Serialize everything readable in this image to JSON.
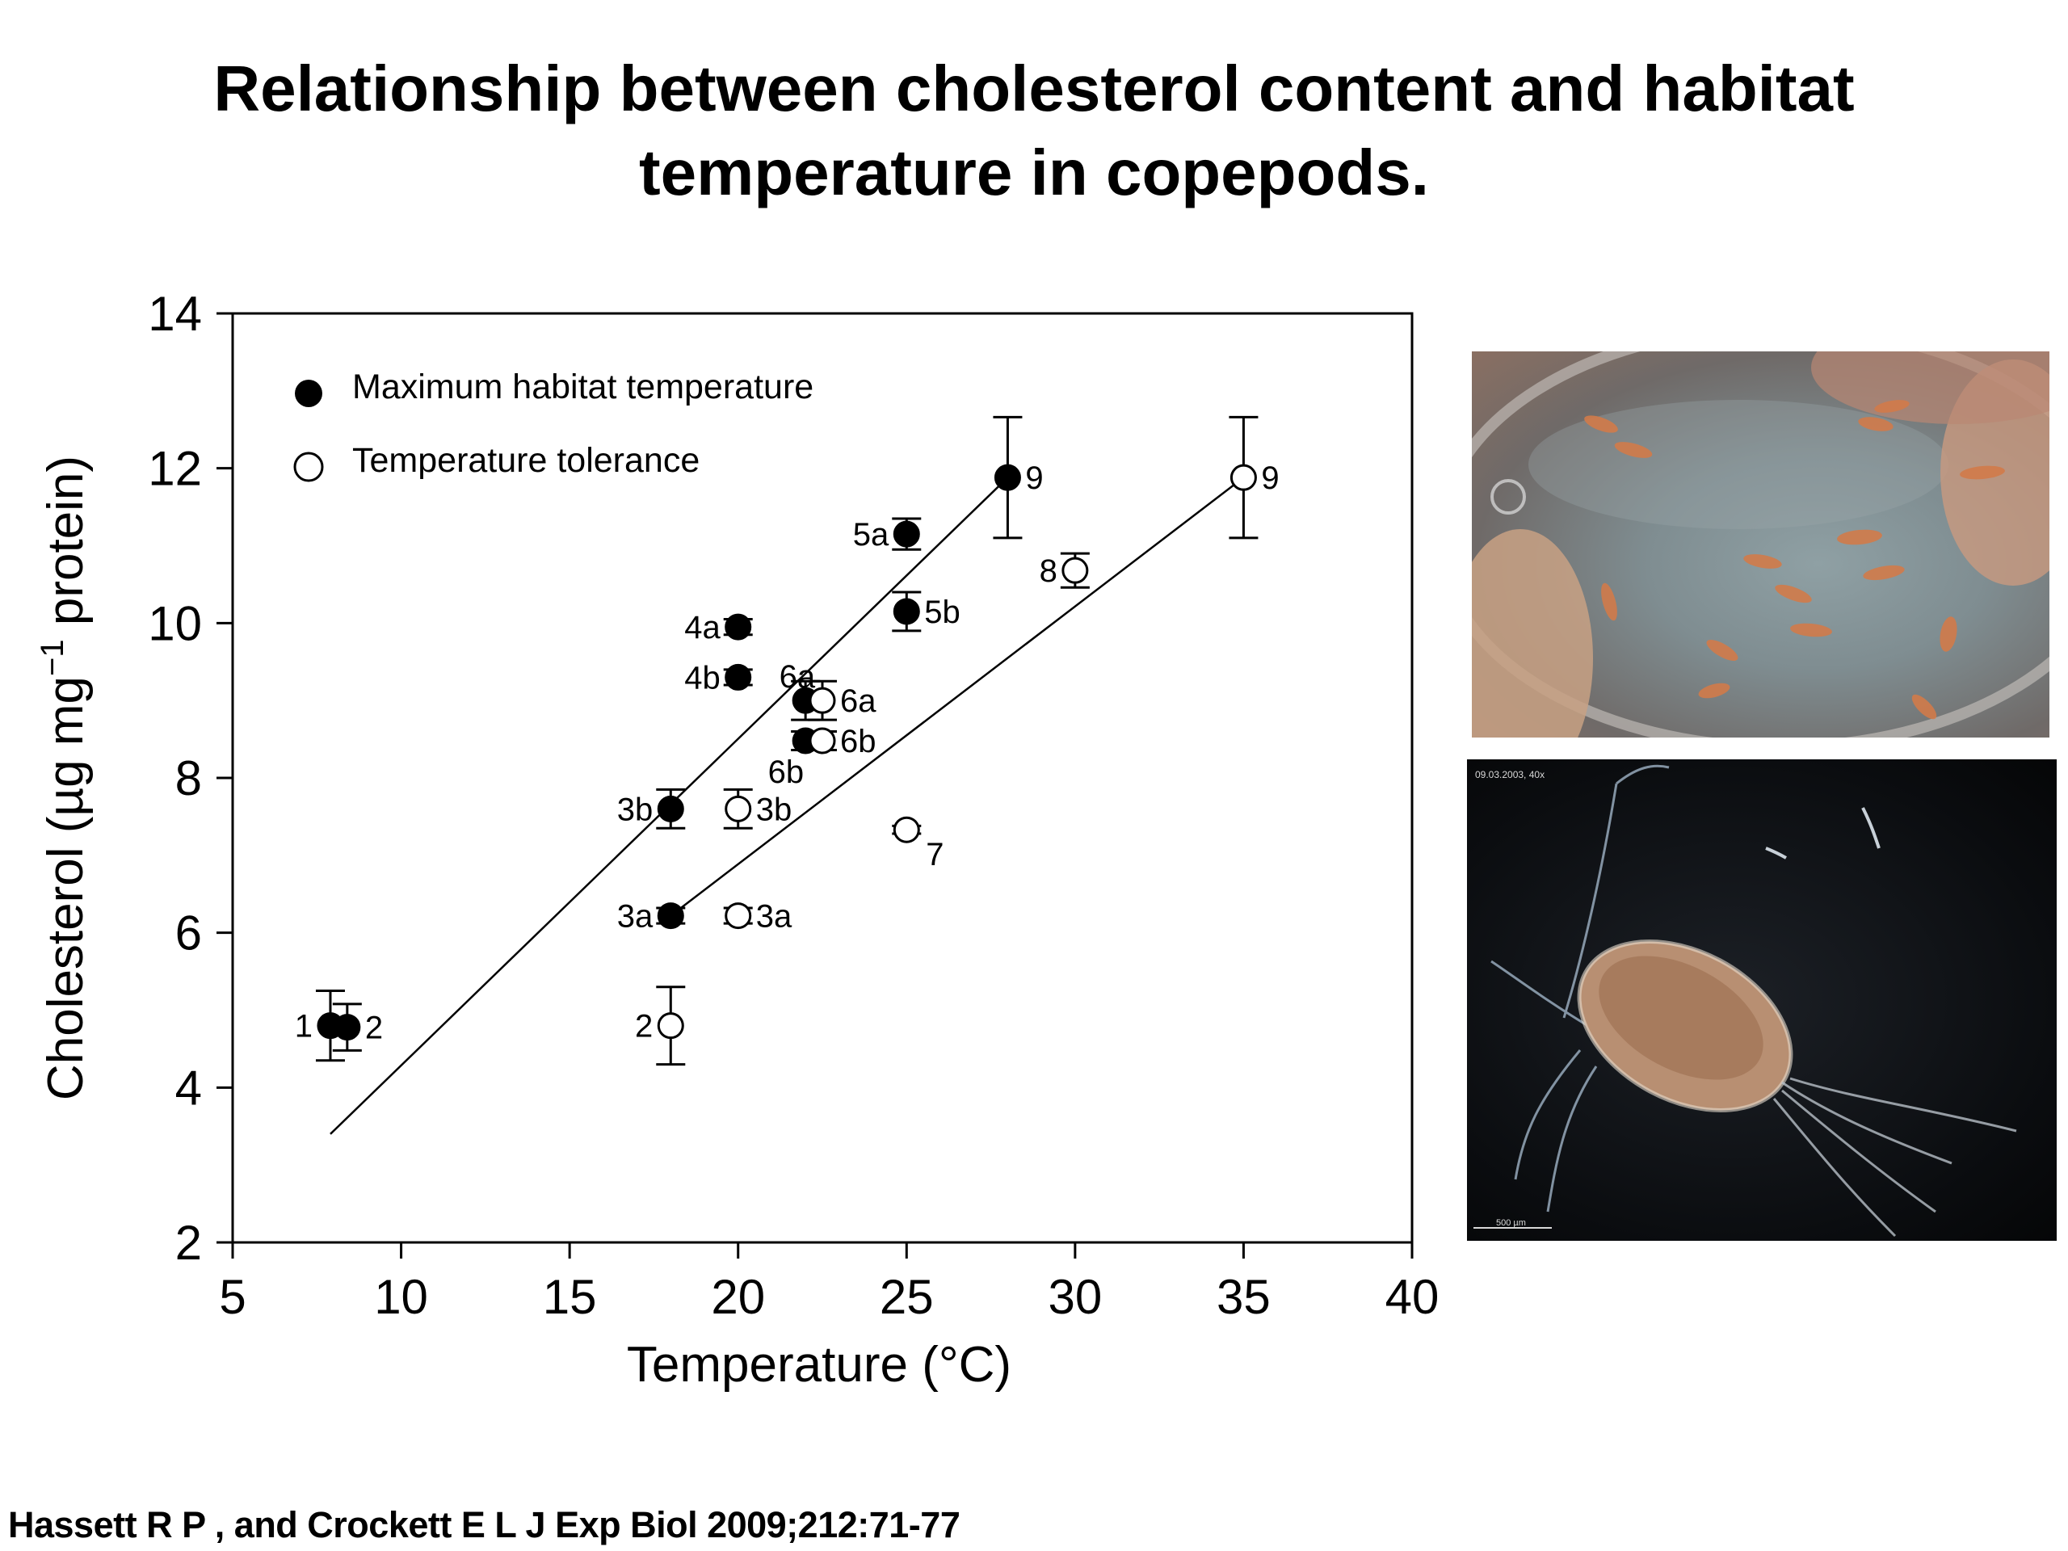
{
  "title_line1": "Relationship between cholesterol content and habitat",
  "title_line2": "temperature in copepods.",
  "citation": "Hassett R P , and Crockett E L J Exp Biol 2009;212:71-77",
  "photo_caption": "09.03.2003, 40x",
  "photo_scalebar": "500 µm",
  "chart_data": {
    "type": "scatter",
    "xlabel": "Temperature (°C)",
    "ylabel_parts": [
      "Cholesterol (",
      "µ",
      "g mg",
      "−1",
      " protein)"
    ],
    "xlim": [
      5,
      40
    ],
    "ylim": [
      2,
      14
    ],
    "xticks": [
      5,
      10,
      15,
      20,
      25,
      30,
      35,
      40
    ],
    "yticks": [
      2,
      4,
      6,
      8,
      10,
      12,
      14
    ],
    "legend_position": "top-left",
    "grid": false,
    "series": [
      {
        "name": "Maximum habitat temperature",
        "marker": "filled-circle",
        "points": [
          {
            "x": 7.9,
            "y": 4.8,
            "err": 0.45,
            "label": "1",
            "label_pos": "left"
          },
          {
            "x": 8.4,
            "y": 4.78,
            "err": 0.3,
            "label": "2",
            "label_pos": "right"
          },
          {
            "x": 18,
            "y": 6.22,
            "err": 0.1,
            "label": "3a",
            "label_pos": "left"
          },
          {
            "x": 18,
            "y": 7.6,
            "err": 0.25,
            "label": "3b",
            "label_pos": "left"
          },
          {
            "x": 20,
            "y": 9.95,
            "err": 0.1,
            "label": "4a",
            "label_pos": "left"
          },
          {
            "x": 20,
            "y": 9.3,
            "err": 0.1,
            "label": "4b",
            "label_pos": "left"
          },
          {
            "x": 25,
            "y": 11.15,
            "err": 0.2,
            "label": "5a",
            "label_pos": "left"
          },
          {
            "x": 25,
            "y": 10.15,
            "err": 0.25,
            "label": "5b",
            "label_pos": "right"
          },
          {
            "x": 22,
            "y": 9.0,
            "err": 0.25,
            "label": "6a",
            "label_pos": "upper-left"
          },
          {
            "x": 22,
            "y": 8.48,
            "err": 0.12,
            "label": "6b",
            "label_pos": "below-left"
          },
          {
            "x": 28,
            "y": 11.88,
            "err": 0.78,
            "label": "9",
            "label_pos": "right"
          }
        ],
        "fit_line": {
          "x": [
            7.9,
            28
          ],
          "y": [
            3.4,
            11.88
          ]
        }
      },
      {
        "name": "Temperature tolerance",
        "marker": "open-circle",
        "points": [
          {
            "x": 18,
            "y": 4.8,
            "err": 0.5,
            "label": "2",
            "label_pos": "left"
          },
          {
            "x": 20,
            "y": 6.22,
            "err": 0.1,
            "label": "3a",
            "label_pos": "right"
          },
          {
            "x": 20,
            "y": 7.6,
            "err": 0.25,
            "label": "3b",
            "label_pos": "right"
          },
          {
            "x": 22.5,
            "y": 9.0,
            "err": 0.25,
            "label": "6a",
            "label_pos": "right"
          },
          {
            "x": 22.5,
            "y": 8.48,
            "err": 0.12,
            "label": "6b",
            "label_pos": "right"
          },
          {
            "x": 25,
            "y": 7.33,
            "err": 0.05,
            "label": "7",
            "label_pos": "below-right"
          },
          {
            "x": 30,
            "y": 10.68,
            "err": 0.22,
            "label": "8",
            "label_pos": "left"
          },
          {
            "x": 35,
            "y": 11.88,
            "err": 0.78,
            "label": "9",
            "label_pos": "right"
          }
        ],
        "fit_line": {
          "x": [
            18,
            35
          ],
          "y": [
            6.22,
            11.88
          ]
        }
      }
    ]
  }
}
